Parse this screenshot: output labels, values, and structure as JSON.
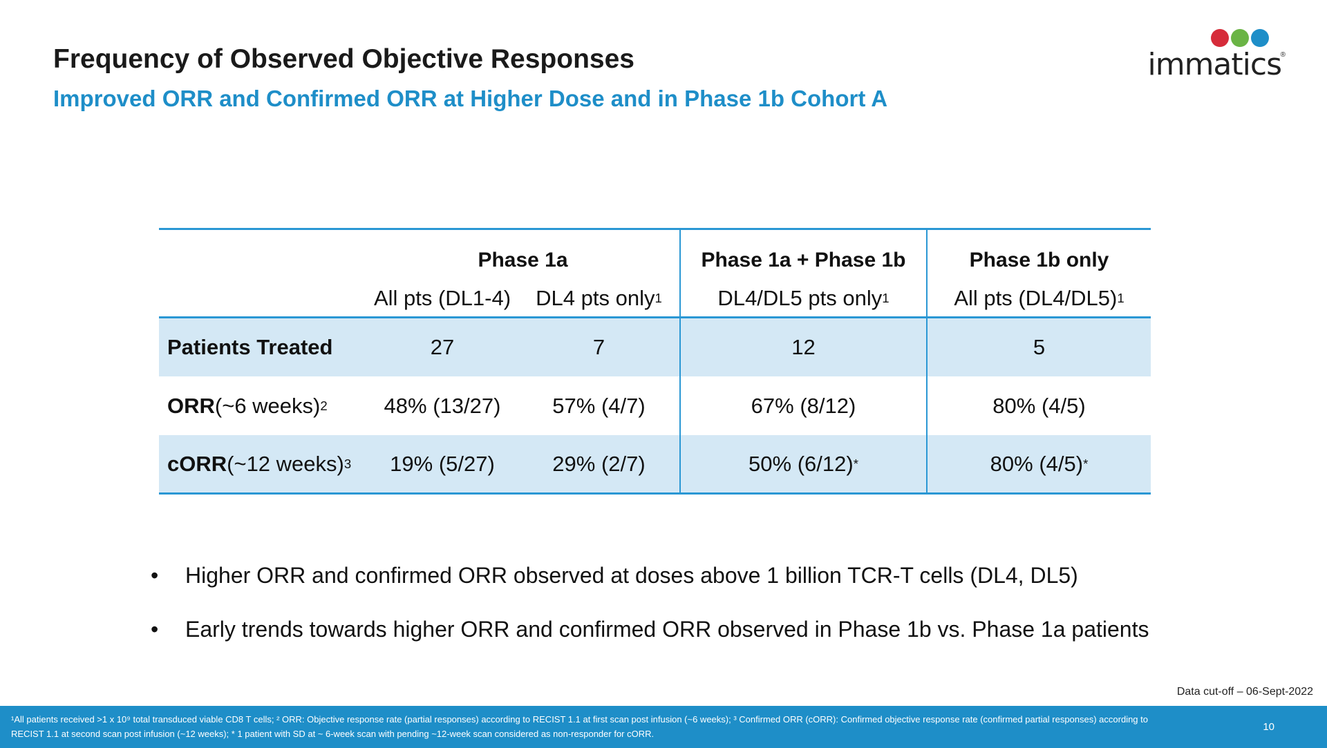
{
  "header": {
    "title": "Frequency of Observed Objective Responses",
    "subtitle": "Improved ORR and Confirmed ORR at Higher Dose and in Phase 1b Cohort A"
  },
  "logo": {
    "text": "immatics",
    "dot_colors": [
      "#d62c3a",
      "#6ab445",
      "#1e8ec8"
    ]
  },
  "table": {
    "groups": [
      "Phase 1a",
      "Phase 1a + Phase 1b",
      "Phase 1b only"
    ],
    "subheaders": [
      {
        "text": "All pts (DL1-4)",
        "sup": ""
      },
      {
        "text": "DL4 pts only",
        "sup": "1"
      },
      {
        "text": "DL4/DL5 pts only",
        "sup": "1"
      },
      {
        "text": "All pts (DL4/DL5)",
        "sup": "1"
      }
    ],
    "rows": [
      {
        "label": "Patients Treated",
        "label_rest": "",
        "sup": "",
        "values": [
          "27",
          "7",
          "12",
          "5"
        ],
        "stars": [
          "",
          "",
          "",
          ""
        ]
      },
      {
        "label": "ORR",
        "label_rest": " (~6 weeks)",
        "sup": "2",
        "values": [
          "48% (13/27)",
          "57% (4/7)",
          "67% (8/12)",
          "80% (4/5)"
        ],
        "stars": [
          "",
          "",
          "",
          ""
        ]
      },
      {
        "label": "cORR",
        "label_rest": " (~12 weeks)",
        "sup": "3",
        "values": [
          "19% (5/27)",
          "29% (2/7)",
          "50% (6/12)",
          "80% (4/5)"
        ],
        "stars": [
          "",
          "",
          "*",
          "*"
        ]
      }
    ]
  },
  "bullets": [
    "Higher ORR and confirmed ORR observed at doses above 1 billion TCR-T cells (DL4, DL5)",
    "Early trends towards higher ORR and confirmed ORR observed in Phase 1b vs. Phase 1a patients"
  ],
  "data_cutoff": "Data cut-off – 06-Sept-2022",
  "footnote": "¹All patients received >1 x 10⁹ total transduced viable CD8 T cells; ² ORR: Objective response rate (partial responses) according to RECIST 1.1 at first scan post infusion (~6 weeks); ³ Confirmed ORR (cORR): Confirmed objective response rate (confirmed partial responses) according to RECIST 1.1 at second scan post infusion (~12 weeks); * 1 patient with SD at ~ 6-week scan with pending ~12-week scan considered as non-responder for cORR.",
  "page_number": "10",
  "colors": {
    "accent": "#1e8ec8",
    "band": "#d4e8f5",
    "rule": "#2a97d4"
  }
}
